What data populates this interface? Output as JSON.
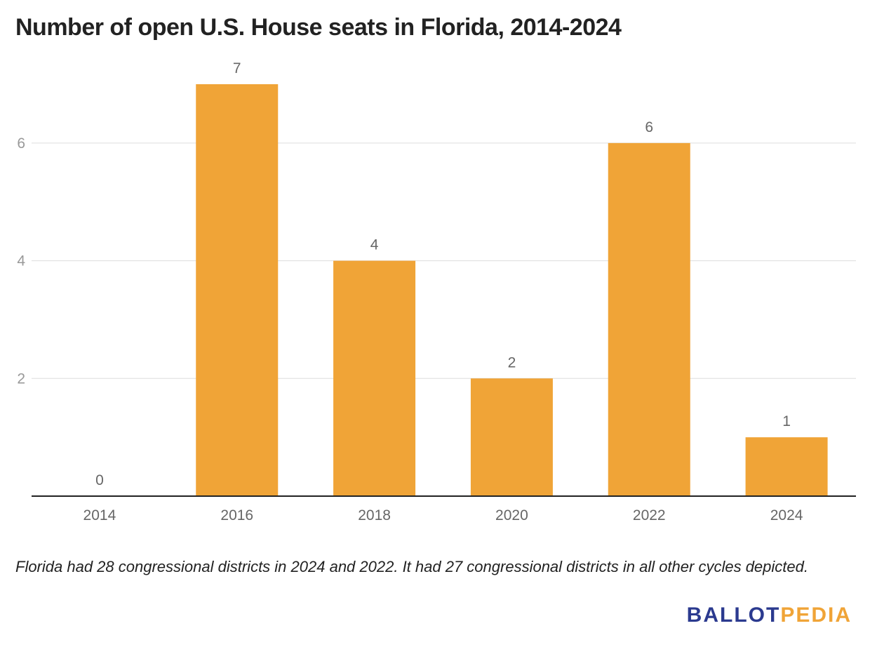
{
  "title": "Number of open U.S. House seats in Florida, 2014-2024",
  "note": "Florida had 28 congressional districts in 2024 and 2022. It had 27 congressional districts in all other cycles depicted.",
  "logo": {
    "part1": "BALLOT",
    "part2": "PEDIA",
    "color1": "#2b3a8f",
    "color2": "#f0a437"
  },
  "colors": {
    "bar": "#f0a437",
    "grid": "#dddddd",
    "axis": "#222222",
    "tick_text": "#999999",
    "label_text": "#666666"
  },
  "chart_data": {
    "type": "bar",
    "categories": [
      "2014",
      "2016",
      "2018",
      "2020",
      "2022",
      "2024"
    ],
    "values": [
      0,
      7,
      4,
      2,
      6,
      1
    ],
    "data_labels": [
      "0",
      "7",
      "4",
      "2",
      "6",
      "1"
    ],
    "yticks": [
      2,
      4,
      6
    ],
    "ylim": [
      0,
      7
    ],
    "xlabel": "",
    "ylabel": "",
    "grid": true,
    "legend": "none"
  }
}
